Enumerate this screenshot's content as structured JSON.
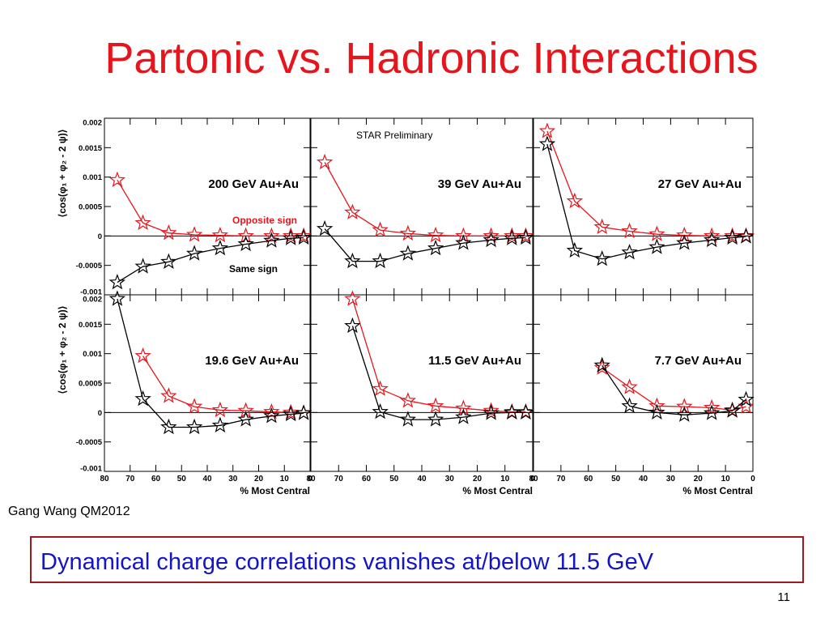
{
  "title": "Partonic vs. Hadronic Interactions",
  "credit": "Gang Wang QM2012",
  "conclusion": "Dynamical charge correlations vanishes at/below 11.5 GeV",
  "page_number": "11",
  "chart_data": [
    {
      "type": "line",
      "label": "200 GeV Au+Au",
      "ylabel": "⟨cos(φ₁ + φ₂ - 2 ψ)⟩",
      "x": [
        75,
        65,
        55,
        45,
        35,
        25,
        15,
        7.5,
        2.5
      ],
      "xlim": [
        80,
        0
      ],
      "xticks": [
        80,
        70,
        60,
        50,
        40,
        30,
        20,
        10,
        0
      ],
      "ylim": [
        -0.001,
        0.002
      ],
      "yticks": [
        0.002,
        0.0015,
        0.001,
        0.0005,
        0,
        -0.0005,
        -0.001
      ],
      "series": [
        {
          "name": "Opposite sign",
          "color": "#e8141c",
          "values": [
            0.00095,
            0.00022,
            5e-05,
            2e-05,
            1e-05,
            0,
            0,
            0,
            0
          ]
        },
        {
          "name": "Same sign",
          "color": "#000000",
          "values": [
            -0.00079,
            -0.00052,
            -0.00044,
            -0.0003,
            -0.00021,
            -0.00014,
            -8e-05,
            -4e-05,
            -3e-05
          ]
        }
      ]
    },
    {
      "type": "line",
      "label": "39 GeV Au+Au",
      "note": "STAR Preliminary",
      "x": [
        75,
        65,
        55,
        45,
        35,
        25,
        15,
        7.5,
        2.5
      ],
      "xlim": [
        80,
        0
      ],
      "xticks": [
        80,
        70,
        60,
        50,
        40,
        30,
        20,
        10,
        0
      ],
      "ylim": [
        -0.001,
        0.002
      ],
      "yticks": [
        0.002,
        0.0015,
        0.001,
        0.0005,
        0,
        -0.0005,
        -0.001
      ],
      "series": [
        {
          "color": "#e8141c",
          "values": [
            0.00125,
            0.0004,
            0.0001,
            4e-05,
            1e-05,
            0,
            0,
            0,
            0
          ]
        },
        {
          "color": "#000000",
          "values": [
            0.00012,
            -0.00043,
            -0.00043,
            -0.0003,
            -0.00021,
            -0.00012,
            -7e-05,
            -4e-05,
            -3e-05
          ]
        }
      ]
    },
    {
      "type": "line",
      "label": "27 GeV Au+Au",
      "x": [
        75,
        65,
        55,
        45,
        35,
        25,
        15,
        7.5,
        2.5
      ],
      "xlim": [
        80,
        0
      ],
      "xticks": [
        80,
        70,
        60,
        50,
        40,
        30,
        20,
        10,
        0
      ],
      "ylim": [
        -0.001,
        0.002
      ],
      "yticks": [
        0.002,
        0.0015,
        0.001,
        0.0005,
        0,
        -0.0005,
        -0.001
      ],
      "series": [
        {
          "color": "#e8141c",
          "values": [
            0.00178,
            0.00059,
            0.00015,
            8e-05,
            3e-05,
            1e-05,
            0,
            0,
            0
          ]
        },
        {
          "color": "#000000",
          "values": [
            0.00156,
            -0.00025,
            -0.00039,
            -0.00028,
            -0.00019,
            -0.00012,
            -7e-05,
            -3e-05,
            -1e-05
          ]
        }
      ]
    },
    {
      "type": "line",
      "label": "19.6 GeV Au+Au",
      "ylabel": "⟨cos(φ₁ + φ₂ - 2 ψ)⟩",
      "xlabel": "% Most Central",
      "x": [
        75,
        65,
        55,
        45,
        35,
        25,
        15,
        7.5,
        2.5
      ],
      "xlim": [
        80,
        0
      ],
      "xticks": [
        80,
        70,
        60,
        50,
        40,
        30,
        20,
        10,
        0
      ],
      "ylim": [
        -0.001,
        0.002
      ],
      "yticks": [
        0.002,
        0.0015,
        0.001,
        0.0005,
        0,
        -0.0005,
        -0.001
      ],
      "series": [
        {
          "color": "#e8141c",
          "values": [
            null,
            0.00096,
            0.00028,
            0.0001,
            4e-05,
            3e-05,
            1e-05,
            0,
            -1e-05
          ]
        },
        {
          "color": "#000000",
          "values": [
            0.00193,
            0.00023,
            -0.00025,
            -0.00025,
            -0.00022,
            -0.00012,
            -6e-05,
            -3e-05,
            -1e-05
          ]
        }
      ]
    },
    {
      "type": "line",
      "label": "11.5 GeV Au+Au",
      "xlabel": "% Most Central",
      "x": [
        75,
        65,
        55,
        45,
        35,
        25,
        15,
        7.5,
        2.5
      ],
      "xlim": [
        80,
        0
      ],
      "xticks": [
        80,
        70,
        60,
        50,
        40,
        30,
        20,
        10,
        0
      ],
      "ylim": [
        -0.001,
        0.002
      ],
      "yticks": [
        0.002,
        0.0015,
        0.001,
        0.0005,
        0,
        -0.0005,
        -0.001
      ],
      "series": [
        {
          "color": "#e8141c",
          "values": [
            null,
            0.00193,
            0.0004,
            0.0002,
            0.00011,
            7e-05,
            3e-05,
            1e-05,
            1e-05
          ]
        },
        {
          "color": "#000000",
          "values": [
            null,
            0.00147,
            1e-05,
            -0.00012,
            -0.00012,
            -8e-05,
            -1e-05,
            0,
            0
          ]
        }
      ]
    },
    {
      "type": "line",
      "label": "7.7 GeV Au+Au",
      "xlabel": "% Most Central",
      "x": [
        75,
        65,
        55,
        45,
        35,
        25,
        15,
        7.5,
        2.5
      ],
      "xlim": [
        80,
        0
      ],
      "xticks": [
        80,
        70,
        60,
        50,
        40,
        30,
        20,
        10,
        0
      ],
      "ylim": [
        -0.001,
        0.002
      ],
      "yticks": [
        0.002,
        0.0015,
        0.001,
        0.0005,
        0,
        -0.0005,
        -0.001
      ],
      "series": [
        {
          "color": "#e8141c",
          "values": [
            null,
            null,
            0.00076,
            0.00043,
            0.00011,
            0.0001,
            8e-05,
            4e-05,
            0.0001
          ]
        },
        {
          "color": "#000000",
          "values": [
            null,
            null,
            0.0008,
            0.00011,
            0,
            -4e-05,
            -1e-05,
            3e-05,
            0.00022
          ]
        }
      ]
    }
  ]
}
